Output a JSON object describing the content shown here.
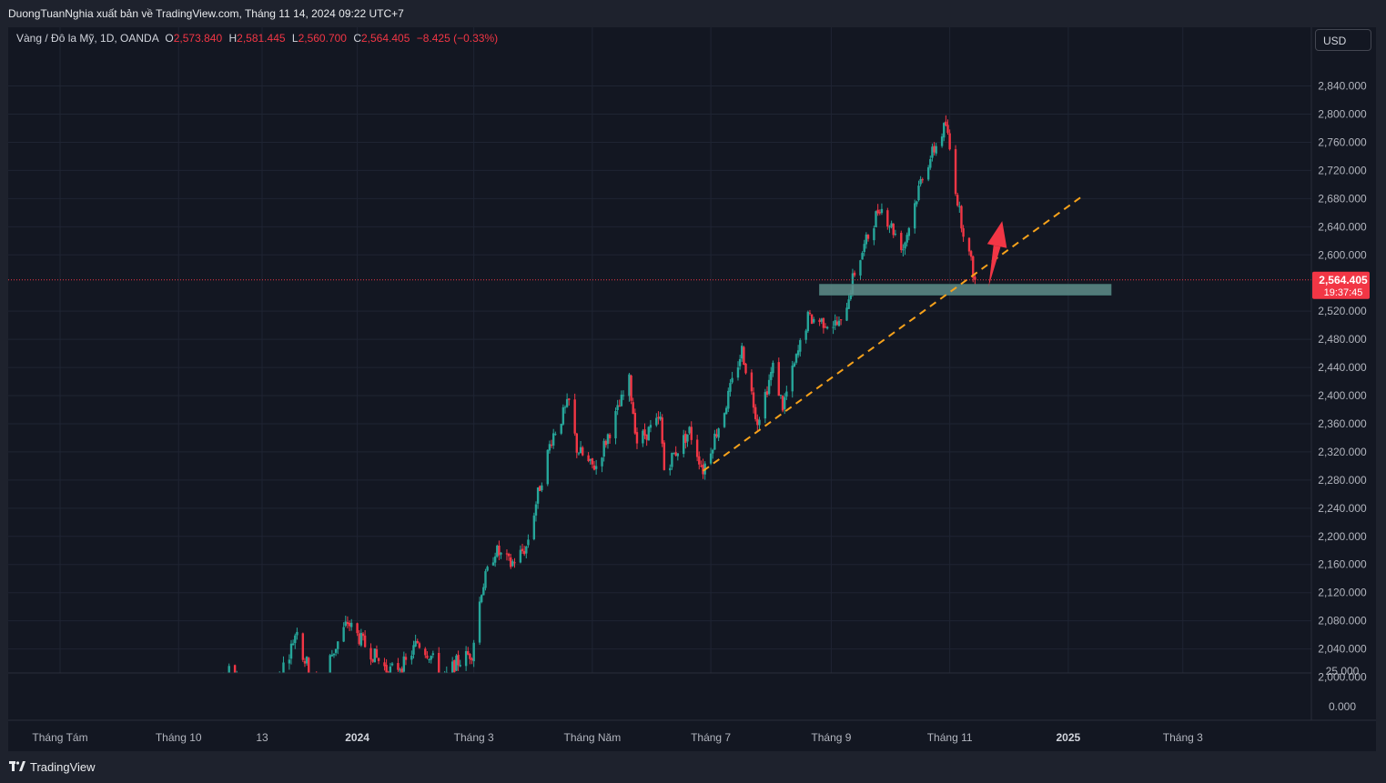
{
  "header": {
    "publish_line": "DuongTuanNghia xuất bản về TradingView.com, Tháng 11 14, 2024 09:22 UTC+7"
  },
  "legend": {
    "symbol": "Vàng / Đô la Mỹ, 1D, OANDA",
    "open_label": "O",
    "open": "2,573.840",
    "high_label": "H",
    "high": "2,581.445",
    "low_label": "L",
    "low": "2,560.700",
    "close_label": "C",
    "close": "2,564.405",
    "change": "−8.425 (−0.33%)"
  },
  "toolbar": {
    "currency": "USD"
  },
  "price_badge": {
    "price": "2,564.405",
    "countdown": "19:37:45",
    "color": "#f23645"
  },
  "footer": {
    "brand": "TradingView"
  },
  "colors": {
    "up": "#26a69a",
    "down": "#f23645",
    "trendline": "#f7a21b",
    "zone": "#5f8d8a",
    "arrow": "#f23645"
  },
  "chart_data": {
    "type": "candlestick",
    "title": "",
    "symbol": "XAUUSD",
    "interval": "1D",
    "y_axis": {
      "position": "right",
      "ticks": [
        "2,840.000",
        "2,800.000",
        "2,760.000",
        "2,720.000",
        "2,680.000",
        "2,640.000",
        "2,600.000",
        "2,520.000",
        "2,480.000",
        "2,440.000",
        "2,400.000",
        "2,360.000",
        "2,320.000",
        "2,280.000",
        "2,240.000",
        "2,200.000",
        "2,160.000",
        "2,120.000",
        "2,080.000",
        "2,040.000",
        "2,000.000"
      ],
      "tick_values": [
        2840,
        2800,
        2760,
        2720,
        2680,
        2640,
        2600,
        2520,
        2480,
        2440,
        2400,
        2360,
        2320,
        2280,
        2240,
        2200,
        2160,
        2120,
        2080,
        2040,
        2000
      ],
      "lower_pane_ticks": [
        "25.000",
        "0.000"
      ],
      "range": [
        1976,
        2860
      ]
    },
    "x_axis": {
      "ticks": [
        {
          "label": "Tháng Tám",
          "date": "2023-08-01",
          "bold": false
        },
        {
          "label": "Tháng 10",
          "date": "2023-10-01",
          "bold": false
        },
        {
          "label": "13",
          "date": "2023-11-13",
          "bold": false
        },
        {
          "label": "2024",
          "date": "2024-01-01",
          "bold": true
        },
        {
          "label": "Tháng 3",
          "date": "2024-03-01",
          "bold": false
        },
        {
          "label": "Tháng Năm",
          "date": "2024-05-01",
          "bold": false
        },
        {
          "label": "Tháng 7",
          "date": "2024-07-01",
          "bold": false
        },
        {
          "label": "Tháng 9",
          "date": "2024-09-01",
          "bold": false
        },
        {
          "label": "Tháng 11",
          "date": "2024-11-01",
          "bold": false
        },
        {
          "label": "2025",
          "date": "2025-01-01",
          "bold": true
        },
        {
          "label": "Tháng 3",
          "date": "2025-03-01",
          "bold": false
        }
      ]
    },
    "last_price": 2564.405,
    "price_path": [
      {
        "date": "2023-08-01",
        "price": 1975
      },
      {
        "date": "2023-08-10",
        "price": 1972
      },
      {
        "date": "2023-10-20",
        "price": 1978
      },
      {
        "date": "2023-10-27",
        "price": 2006
      },
      {
        "date": "2023-11-03",
        "price": 1993
      },
      {
        "date": "2023-11-13",
        "price": 1958
      },
      {
        "date": "2023-11-20",
        "price": 1992
      },
      {
        "date": "2023-11-28",
        "price": 2042
      },
      {
        "date": "2023-12-01",
        "price": 2072
      },
      {
        "date": "2023-12-04",
        "price": 2030
      },
      {
        "date": "2023-12-13",
        "price": 1982
      },
      {
        "date": "2023-12-18",
        "price": 2027
      },
      {
        "date": "2023-12-27",
        "price": 2078
      },
      {
        "date": "2024-01-05",
        "price": 2045
      },
      {
        "date": "2024-01-17",
        "price": 2008
      },
      {
        "date": "2024-01-26",
        "price": 2020
      },
      {
        "date": "2024-02-01",
        "price": 2050
      },
      {
        "date": "2024-02-08",
        "price": 2030
      },
      {
        "date": "2024-02-14",
        "price": 1993
      },
      {
        "date": "2024-02-20",
        "price": 2018
      },
      {
        "date": "2024-02-29",
        "price": 2035
      },
      {
        "date": "2024-03-05",
        "price": 2125
      },
      {
        "date": "2024-03-12",
        "price": 2180
      },
      {
        "date": "2024-03-20",
        "price": 2160
      },
      {
        "date": "2024-03-28",
        "price": 2185
      },
      {
        "date": "2024-04-03",
        "price": 2260
      },
      {
        "date": "2024-04-10",
        "price": 2340
      },
      {
        "date": "2024-04-19",
        "price": 2390
      },
      {
        "date": "2024-04-23",
        "price": 2325
      },
      {
        "date": "2024-04-30",
        "price": 2300
      },
      {
        "date": "2024-05-03",
        "price": 2300
      },
      {
        "date": "2024-05-10",
        "price": 2350
      },
      {
        "date": "2024-05-20",
        "price": 2420
      },
      {
        "date": "2024-05-24",
        "price": 2335
      },
      {
        "date": "2024-06-05",
        "price": 2365
      },
      {
        "date": "2024-06-07",
        "price": 2295
      },
      {
        "date": "2024-06-20",
        "price": 2350
      },
      {
        "date": "2024-06-27",
        "price": 2295
      },
      {
        "date": "2024-07-08",
        "price": 2380
      },
      {
        "date": "2024-07-17",
        "price": 2465
      },
      {
        "date": "2024-07-25",
        "price": 2365
      },
      {
        "date": "2024-08-02",
        "price": 2440
      },
      {
        "date": "2024-08-07",
        "price": 2385
      },
      {
        "date": "2024-08-20",
        "price": 2510
      },
      {
        "date": "2024-09-06",
        "price": 2500
      },
      {
        "date": "2024-09-13",
        "price": 2575
      },
      {
        "date": "2024-09-26",
        "price": 2670
      },
      {
        "date": "2024-10-08",
        "price": 2610
      },
      {
        "date": "2024-10-18",
        "price": 2715
      },
      {
        "date": "2024-10-30",
        "price": 2785
      },
      {
        "date": "2024-11-06",
        "price": 2660
      },
      {
        "date": "2024-11-14",
        "price": 2564
      }
    ],
    "annotations": [
      {
        "type": "support-zone",
        "from": "2024-08-26",
        "to": "2025-01-23",
        "price_low": 2543,
        "price_high": 2558
      },
      {
        "type": "trendline",
        "from": {
          "date": "2024-06-27",
          "price": 2293
        },
        "to": {
          "date": "2025-01-09",
          "price": 2685
        },
        "style": "dashed"
      },
      {
        "type": "arrow",
        "from": {
          "date": "2024-11-21",
          "price": 2555
        },
        "to": {
          "date": "2024-11-28",
          "price": 2648
        }
      },
      {
        "type": "price-line",
        "price": 2564.405,
        "style": "dotted"
      }
    ]
  }
}
